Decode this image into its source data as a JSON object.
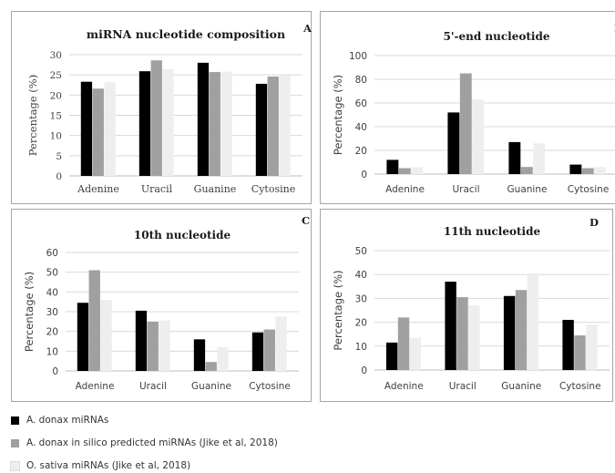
{
  "colors": {
    "series1": "#000000",
    "series2": "#a0a0a0",
    "series3": "#eeeeee",
    "grid": "#d9d9d9",
    "border": "#a6a6a6",
    "text": "#404040"
  },
  "legend": {
    "items": [
      "A. donax miRNAs",
      "A. donax in silico predicted miRNAs (Jike et al, 2018)",
      "O. sativa miRNAs (Jike et al, 2018)"
    ]
  },
  "chart_data": [
    {
      "type": "bar",
      "panel_letter": "A",
      "title": "miRNA  nucleotide  composition",
      "ylabel": "Percentage (%)",
      "ylim": [
        0,
        30
      ],
      "yticks": [
        0,
        5,
        10,
        15,
        20,
        25,
        30
      ],
      "categories": [
        "Adenine",
        "Uracil",
        "Guanine",
        "Cytosine"
      ],
      "grid": true,
      "series": [
        {
          "values": [
            23.3,
            25.9,
            28.0,
            22.8
          ]
        },
        {
          "values": [
            21.6,
            28.6,
            25.7,
            24.6
          ]
        },
        {
          "values": [
            23.2,
            26.4,
            25.8,
            24.8
          ]
        }
      ]
    },
    {
      "type": "bar",
      "panel_letter": "B",
      "title": "5'-end nucleotide",
      "ylabel": "Percentage (%)",
      "ylim": [
        0,
        100
      ],
      "yticks": [
        0,
        20,
        40,
        60,
        80,
        100
      ],
      "categories": [
        "Adenine",
        "Uracil",
        "Guanine",
        "Cytosine"
      ],
      "grid": true,
      "series": [
        {
          "values": [
            12,
            52,
            27,
            8
          ]
        },
        {
          "values": [
            5,
            85,
            6,
            5
          ]
        },
        {
          "values": [
            6,
            63,
            26,
            6
          ]
        }
      ]
    },
    {
      "type": "bar",
      "panel_letter": "C",
      "title": "10th nucleotide",
      "ylabel": "Percentage (%)",
      "ylim": [
        0,
        60
      ],
      "yticks": [
        0,
        10,
        20,
        30,
        40,
        50,
        60
      ],
      "categories": [
        "Adenine",
        "Uracil",
        "Guanine",
        "Cytosine"
      ],
      "grid": true,
      "series": [
        {
          "values": [
            34.5,
            30.5,
            16,
            19.5
          ]
        },
        {
          "values": [
            51,
            25,
            4.5,
            21
          ]
        },
        {
          "values": [
            36,
            25.5,
            12,
            27.5
          ]
        }
      ]
    },
    {
      "type": "bar",
      "panel_letter": "D",
      "title": "11th nucleotide",
      "ylabel": "Percentage (%)",
      "ylim": [
        0,
        50
      ],
      "yticks": [
        0,
        10,
        20,
        30,
        40,
        50
      ],
      "categories": [
        "Adenine",
        "Uracil",
        "Guanine",
        "Cytosine"
      ],
      "grid": true,
      "series": [
        {
          "values": [
            11.5,
            37,
            31,
            21
          ]
        },
        {
          "values": [
            22,
            30.5,
            33.5,
            14.5
          ]
        },
        {
          "values": [
            13.5,
            27,
            40.5,
            19
          ]
        }
      ]
    }
  ]
}
